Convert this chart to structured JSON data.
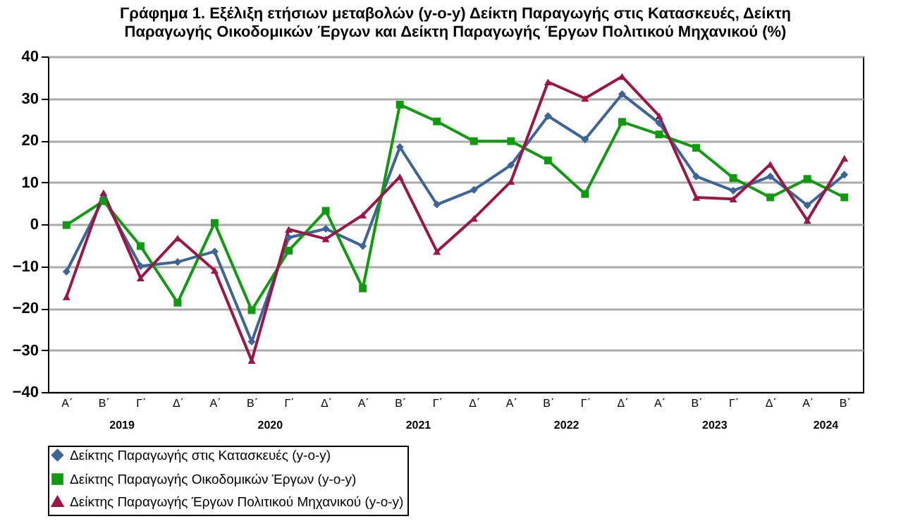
{
  "chart_data": {
    "type": "line",
    "title": "Γράφημα 1. Εξέλιξη ετήσιων μεταβολών (y-o-y) Δείκτη Παραγωγής στις Κατασκευές, Δείκτη Παραγωγής Οικοδομικών Έργων και  Δείκτη Παραγωγής  Έργων Πολιτικού Μηχανικού (%)",
    "categories": [
      "Α΄",
      "Β΄",
      "Γ΄",
      "Δ΄",
      "Α΄",
      "Β΄",
      "Γ΄",
      "Δ΄",
      "Α΄",
      "Β΄",
      "Γ΄",
      "Δ΄",
      "Α΄",
      "Β΄",
      "Γ΄",
      "Δ΄",
      "Α΄",
      "Β΄",
      "Γ΄",
      "Δ΄",
      "Α΄",
      "Β΄"
    ],
    "annotations": [
      "2019",
      "2020",
      "2021",
      "2022",
      "2023",
      "2024"
    ],
    "series": [
      {
        "name": "Δείκτης Παραγωγής στις Κατασκευές (y-o-y)",
        "color": "#3c6496",
        "marker": "diamond",
        "values": [
          -11.3,
          6.2,
          -10,
          -9,
          -6.5,
          -28,
          -3.2,
          -1.1,
          -5.2,
          18.4,
          4.7,
          8.2,
          14.1,
          25.8,
          20.2,
          31,
          24.1,
          11.4,
          8,
          11.4,
          4.5,
          11.8
        ]
      },
      {
        "name": "Δείκτης Παραγωγής Οικοδομικών Έργων (y-o-y)",
        "color": "#109a10",
        "marker": "square",
        "values": [
          -0.2,
          5.5,
          -5.2,
          -18.7,
          0.3,
          -20.5,
          -6.3,
          3.2,
          -15.3,
          28.5,
          24.5,
          19.8,
          19.8,
          15.2,
          7.2,
          24.4,
          21.4,
          18.2,
          11,
          6.4,
          10.8,
          6.4
        ]
      },
      {
        "name": "Δείκτης Παραγωγής Έργων Πολιτικού Μηχανικού (y-o-y)",
        "color": "#9b1545",
        "marker": "triangle",
        "values": [
          -17.3,
          7.5,
          -12.8,
          -3.3,
          -11,
          -32.5,
          -1.2,
          -3.5,
          2.2,
          11.3,
          -6.5,
          1.4,
          10.2,
          33.9,
          30,
          35.2,
          25.8,
          6.4,
          6,
          14.3,
          0.9,
          15.7
        ]
      }
    ],
    "ylim": [
      -40,
      40
    ],
    "yticks": [
      -40,
      -30,
      -20,
      -10,
      0,
      10,
      20,
      30,
      40
    ],
    "grid": "y",
    "legend": "bottom"
  }
}
